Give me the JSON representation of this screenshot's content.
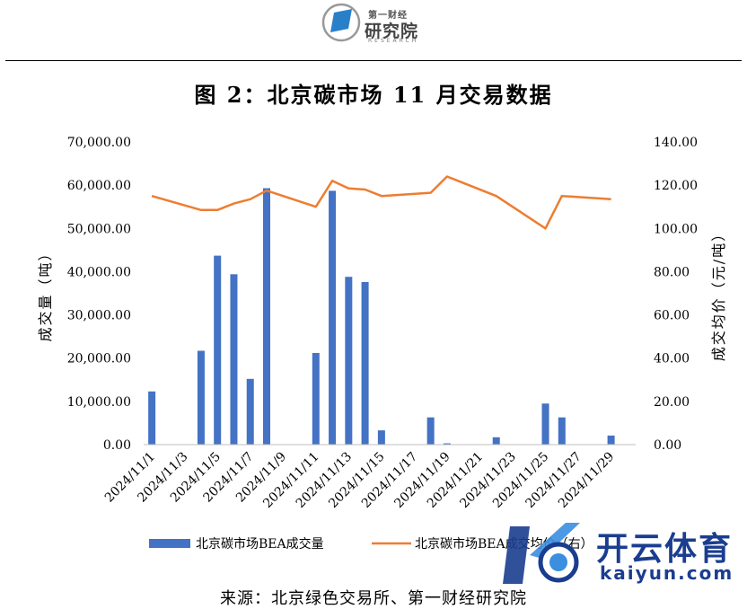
{
  "header": {
    "logo_top": "第一财经",
    "logo_main": "研究院",
    "logo_sub": "RESEARCH"
  },
  "title": "图 2：北京碳市场 11 月交易数据",
  "source": "来源：北京绿色交易所、第一财经研究院",
  "watermark": {
    "cn": "开云体育",
    "en": "kaiyun.com"
  },
  "colors": {
    "bar": "#4472C4",
    "line": "#ED7D31",
    "axis": "#000000",
    "grid": "#d9d9d9"
  },
  "chart_data": {
    "type": "bar",
    "x_tick_labels": [
      "2024/11/1",
      "2024/11/3",
      "2024/11/5",
      "2024/11/7",
      "2024/11/9",
      "2024/11/11",
      "2024/11/13",
      "2024/11/15",
      "2024/11/17",
      "2024/11/19",
      "2024/11/21",
      "2024/11/23",
      "2024/11/25",
      "2024/11/27",
      "2024/11/29"
    ],
    "days": [
      1,
      2,
      3,
      4,
      5,
      6,
      7,
      8,
      9,
      10,
      11,
      12,
      13,
      14,
      15,
      16,
      17,
      18,
      19,
      20,
      21,
      22,
      23,
      24,
      25,
      26,
      27,
      28,
      29,
      30
    ],
    "series": [
      {
        "name": "北京碳市场BEA成交量",
        "type": "bar",
        "axis": "left",
        "x": [
          1,
          4,
          5,
          6,
          7,
          8,
          11,
          12,
          13,
          14,
          15,
          18,
          19,
          22,
          25,
          26,
          29
        ],
        "values": [
          12300,
          21700,
          43700,
          39400,
          15200,
          59300,
          21200,
          58700,
          38800,
          37600,
          3300,
          6300,
          300,
          1700,
          9500,
          6300,
          2100
        ]
      },
      {
        "name": "北京碳市场BEA成交均价（右）",
        "type": "line",
        "axis": "right",
        "x": [
          1,
          4,
          5,
          6,
          7,
          8,
          11,
          12,
          13,
          14,
          15,
          18,
          19,
          22,
          25,
          26,
          29
        ],
        "values": [
          115,
          108.5,
          108.5,
          111.5,
          113.5,
          117.5,
          110,
          122,
          118.5,
          118,
          115,
          116.5,
          124,
          115,
          100,
          115,
          113.5
        ]
      }
    ],
    "ylabel_left": "成交量（吨）",
    "ylabel_right": "成交均价（元/吨）",
    "y_left_ticks": [
      "0.00",
      "10,000.00",
      "20,000.00",
      "30,000.00",
      "40,000.00",
      "50,000.00",
      "60,000.00",
      "70,000.00"
    ],
    "y_right_ticks": [
      "0.00",
      "20.00",
      "40.00",
      "60.00",
      "80.00",
      "100.00",
      "120.00",
      "140.00"
    ],
    "ylim_left": [
      0,
      70000
    ],
    "ylim_right": [
      0,
      140
    ],
    "grid": false,
    "legend_position": "bottom"
  }
}
